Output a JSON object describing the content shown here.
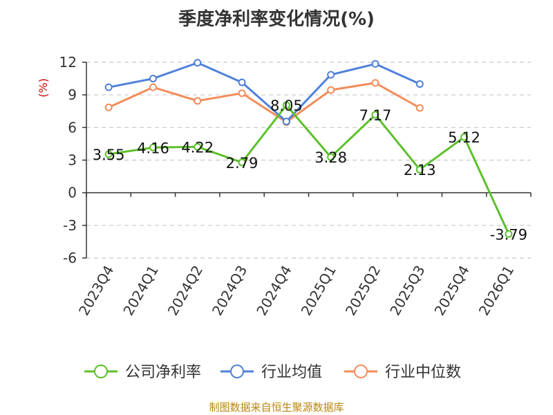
{
  "chart_data": {
    "type": "line",
    "title": "季度净利率变化情况(%)",
    "yunit": "(%)",
    "categories": [
      "2023Q4",
      "2024Q1",
      "2024Q2",
      "2024Q3",
      "2024Q4",
      "2025Q1",
      "2025Q2",
      "2025Q3",
      "2025Q4",
      "2026Q1"
    ],
    "yticks": [
      "12",
      "9",
      "6",
      "3",
      "0",
      "-3",
      "-6"
    ],
    "ylim": [
      -6,
      12
    ],
    "grid": true,
    "legend_position": "bottom",
    "series": [
      {
        "name": "公司净利率",
        "color": "#5cc02a",
        "values": [
          3.55,
          4.16,
          4.22,
          2.79,
          8.05,
          3.28,
          7.17,
          2.13,
          5.12,
          -3.79
        ],
        "labels": [
          "3.55",
          "4.16",
          "4.22",
          "2.79",
          "8.05",
          "3.28",
          "7.17",
          "2.13",
          "5.12",
          "-3.79"
        ]
      },
      {
        "name": "行业均值",
        "color": "#4f81db",
        "values": [
          9.7,
          10.5,
          11.95,
          10.15,
          6.55,
          10.85,
          11.85,
          10.0,
          null,
          null
        ]
      },
      {
        "name": "行业中位数",
        "color": "#f48c5a",
        "values": [
          7.85,
          9.7,
          8.45,
          9.15,
          6.5,
          9.45,
          10.1,
          7.8,
          null,
          null
        ]
      }
    ]
  },
  "source": "制图数据来自恒生聚源数据库"
}
